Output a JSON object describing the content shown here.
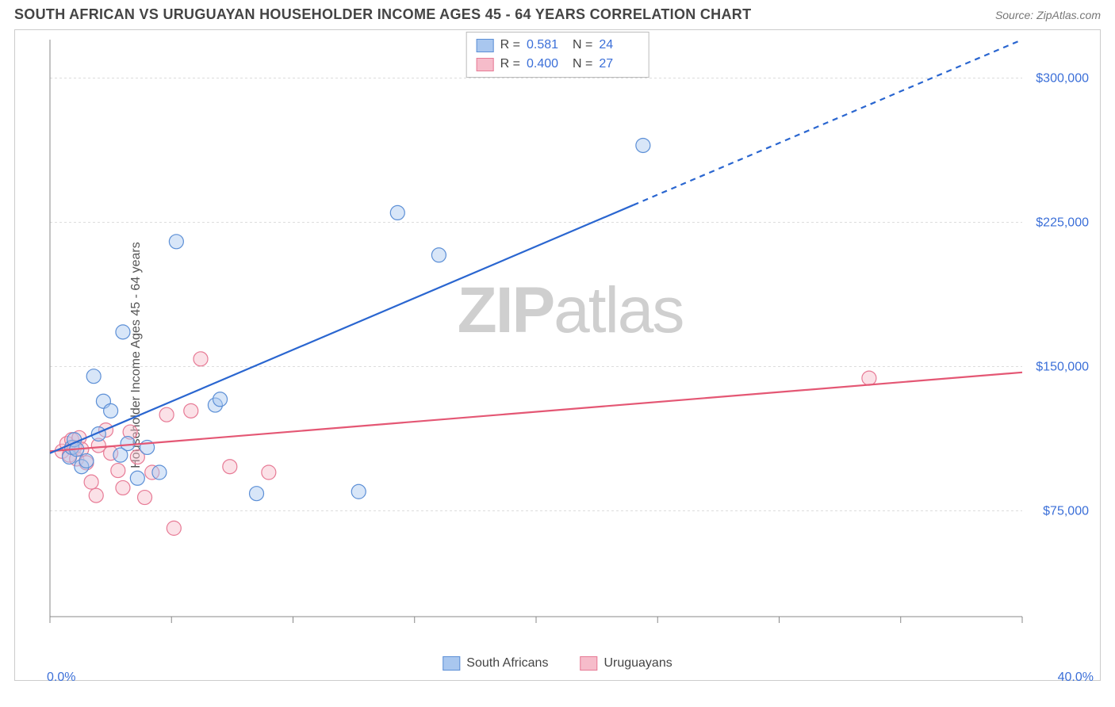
{
  "header": {
    "title": "SOUTH AFRICAN VS URUGUAYAN HOUSEHOLDER INCOME AGES 45 - 64 YEARS CORRELATION CHART",
    "source": "Source: ZipAtlas.com"
  },
  "watermark": {
    "zip": "ZIP",
    "atlas": "atlas"
  },
  "ylabel": "Householder Income Ages 45 - 64 years",
  "chart": {
    "type": "scatter",
    "background_color": "#ffffff",
    "grid_color": "#dddddd",
    "axis_color": "#888888",
    "xlim": [
      0,
      40
    ],
    "ylim": [
      20000,
      320000
    ],
    "x_ticks_major": [
      0,
      5,
      10,
      15,
      20,
      25,
      30,
      35,
      40
    ],
    "x_tick_labels": {
      "left": "0.0%",
      "right": "40.0%"
    },
    "y_gridlines": [
      75000,
      150000,
      225000,
      300000
    ],
    "y_tick_labels": [
      "$75,000",
      "$150,000",
      "$225,000",
      "$300,000"
    ],
    "marker_radius": 9,
    "marker_stroke_width": 1.2,
    "marker_fill_opacity": 0.45,
    "line_width": 2.2,
    "series": {
      "south_africans": {
        "label": "South Africans",
        "color_fill": "#a9c7ef",
        "color_stroke": "#5c8fd6",
        "line_color": "#2a66d0",
        "line_dash_after_x": 24,
        "trend": {
          "x1": 0,
          "y1": 105000,
          "x2": 40,
          "y2": 320000
        },
        "stats": {
          "R": "0.581",
          "N": "24"
        },
        "points": [
          [
            0.8,
            103000
          ],
          [
            0.9,
            108000
          ],
          [
            1.0,
            112000
          ],
          [
            1.1,
            107000
          ],
          [
            1.3,
            98000
          ],
          [
            1.5,
            101000
          ],
          [
            1.8,
            145000
          ],
          [
            2.0,
            115000
          ],
          [
            2.2,
            132000
          ],
          [
            2.5,
            127000
          ],
          [
            2.9,
            104000
          ],
          [
            3.0,
            168000
          ],
          [
            3.2,
            110000
          ],
          [
            3.6,
            92000
          ],
          [
            4.0,
            108000
          ],
          [
            4.5,
            95000
          ],
          [
            5.2,
            215000
          ],
          [
            6.8,
            130000
          ],
          [
            7.0,
            133000
          ],
          [
            8.5,
            84000
          ],
          [
            12.7,
            85000
          ],
          [
            14.3,
            230000
          ],
          [
            16.0,
            208000
          ],
          [
            24.4,
            265000
          ]
        ]
      },
      "uruguayans": {
        "label": "Uruguayans",
        "color_fill": "#f6bcca",
        "color_stroke": "#e77a95",
        "line_color": "#e45774",
        "trend": {
          "x1": 0,
          "y1": 106000,
          "x2": 40,
          "y2": 147000
        },
        "stats": {
          "R": "0.400",
          "N": "27"
        },
        "points": [
          [
            0.5,
            106000
          ],
          [
            0.7,
            110000
          ],
          [
            0.8,
            104000
          ],
          [
            0.9,
            112000
          ],
          [
            1.0,
            108000
          ],
          [
            1.1,
            102000
          ],
          [
            1.2,
            113000
          ],
          [
            1.3,
            107000
          ],
          [
            1.5,
            100000
          ],
          [
            1.7,
            90000
          ],
          [
            1.9,
            83000
          ],
          [
            2.0,
            109000
          ],
          [
            2.3,
            117000
          ],
          [
            2.5,
            105000
          ],
          [
            2.8,
            96000
          ],
          [
            3.0,
            87000
          ],
          [
            3.3,
            116000
          ],
          [
            3.6,
            103000
          ],
          [
            3.9,
            82000
          ],
          [
            4.2,
            95000
          ],
          [
            4.8,
            125000
          ],
          [
            5.1,
            66000
          ],
          [
            5.8,
            127000
          ],
          [
            6.2,
            154000
          ],
          [
            7.4,
            98000
          ],
          [
            9.0,
            95000
          ],
          [
            33.7,
            144000
          ]
        ]
      }
    }
  },
  "stat_legend": {
    "r_label": "R =",
    "n_label": "N ="
  }
}
